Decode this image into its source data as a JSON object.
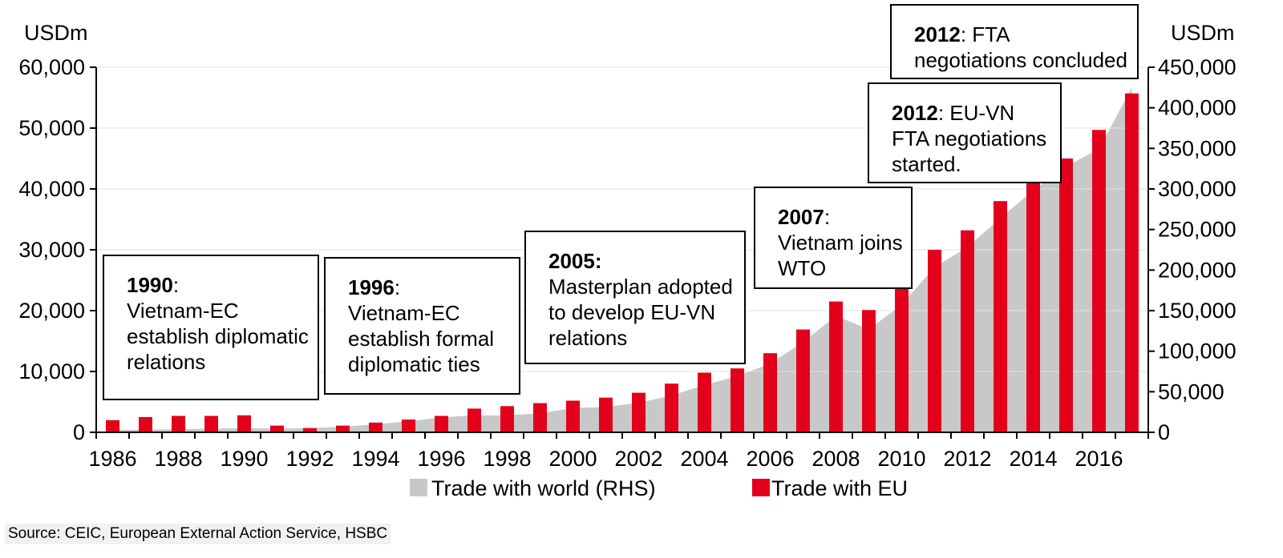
{
  "chart_data": {
    "type": "bar",
    "categories": [
      1986,
      1987,
      1988,
      1989,
      1990,
      1991,
      1992,
      1993,
      1994,
      1995,
      1996,
      1997,
      1998,
      1999,
      2000,
      2001,
      2002,
      2003,
      2004,
      2005,
      2006,
      2007,
      2008,
      2009,
      2010,
      2011,
      2012,
      2013,
      2014,
      2015,
      2016,
      2017
    ],
    "x_tick_labels": [
      "1986",
      "1988",
      "1990",
      "1992",
      "1994",
      "1996",
      "1998",
      "2000",
      "2002",
      "2004",
      "2006",
      "2008",
      "2010",
      "2012",
      "2014",
      "2016"
    ],
    "series": [
      {
        "name": "Trade with EU",
        "type": "bar",
        "axis": "left",
        "color": "#e3001b",
        "values": [
          2000,
          2500,
          2700,
          2700,
          2800,
          1100,
          700,
          1100,
          1600,
          2100,
          2700,
          3900,
          4300,
          4800,
          5200,
          5700,
          6500,
          8000,
          9800,
          10500,
          13000,
          16900,
          21500,
          20100,
          24000,
          30000,
          33200,
          38000,
          41500,
          45000,
          49700,
          55700
        ]
      },
      {
        "name": "Trade with world (RHS)",
        "type": "area",
        "axis": "right",
        "color": "#c8c8c8",
        "values": [
          3000,
          3300,
          3800,
          4500,
          5100,
          4400,
          5100,
          6900,
          9900,
          13600,
          18400,
          20800,
          20900,
          23300,
          30100,
          31200,
          36400,
          45400,
          58400,
          69200,
          84700,
          111300,
          143400,
          127000,
          157100,
          203700,
          228300,
          264000,
          298100,
          327800,
          349100,
          425100
        ]
      }
    ],
    "left_axis": {
      "label": "USDm",
      "ylim": [
        0,
        60000
      ],
      "ticks": [
        "0",
        "10,000",
        "20,000",
        "30,000",
        "40,000",
        "50,000",
        "60,000"
      ]
    },
    "right_axis": {
      "label": "USDm",
      "ylim": [
        0,
        450000
      ],
      "ticks": [
        "0",
        "50,000",
        "100,000",
        "150,000",
        "200,000",
        "250,000",
        "300,000",
        "350,000",
        "400,000",
        "450,000"
      ]
    },
    "legend": [
      {
        "label": "Trade with world (RHS)",
        "color": "#c8c8c8"
      },
      {
        "label": "Trade with EU",
        "color": "#e3001b"
      }
    ],
    "annotations": [
      {
        "id": "1990",
        "year_text": "1990",
        "sep": ":",
        "lines": [
          "Vietnam-EC",
          "establish diplomatic",
          "relations"
        ]
      },
      {
        "id": "1996",
        "year_text": "1996",
        "sep": ":",
        "lines": [
          "Vietnam-EC",
          "establish formal",
          "diplomatic ties"
        ]
      },
      {
        "id": "2005",
        "year_text": "2005:",
        "sep": "",
        "lines": [
          "Masterplan adopted",
          "to develop EU-VN",
          "relations"
        ]
      },
      {
        "id": "2007",
        "year_text": "2007",
        "sep": ":",
        "lines": [
          "Vietnam joins",
          "WTO"
        ]
      },
      {
        "id": "2012a",
        "year_text": "2012",
        "sep": ": EU-VN",
        "lines": [
          "FTA negotiations",
          "started."
        ]
      },
      {
        "id": "2012b",
        "year_text": "2012",
        "sep": ": FTA",
        "lines": [
          "negotiations concluded"
        ]
      }
    ],
    "source": "Source: CEIC,  European External Action Service, HSBC"
  }
}
